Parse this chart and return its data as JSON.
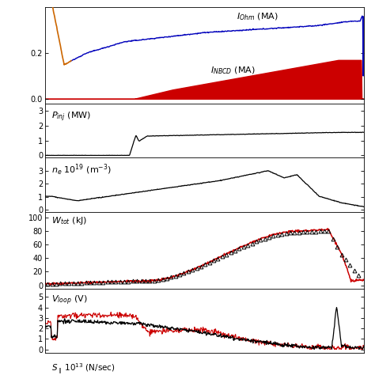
{
  "subplots": [
    {
      "yticks": [
        0.0,
        0.2
      ],
      "ylim": [
        -0.02,
        0.4
      ]
    },
    {
      "yticks": [
        0,
        1,
        2,
        3
      ],
      "ylim": [
        -0.15,
        3.5
      ]
    },
    {
      "yticks": [
        0,
        1,
        2,
        3
      ],
      "ylim": [
        -0.15,
        4.0
      ]
    },
    {
      "yticks": [
        0,
        20,
        40,
        60,
        80,
        100
      ],
      "ylim": [
        -5,
        108
      ]
    },
    {
      "yticks": [
        0,
        1,
        2,
        3,
        4,
        5
      ],
      "ylim": [
        -0.3,
        5.8
      ]
    }
  ],
  "bg_color": "#ffffff",
  "line_black": "#000000",
  "line_red": "#cc0000",
  "line_blue": "#0000bb",
  "line_orange": "#cc6600",
  "fill_red": "#cc0000",
  "height_ratios": [
    1.5,
    0.85,
    0.85,
    1.2,
    1.0
  ]
}
